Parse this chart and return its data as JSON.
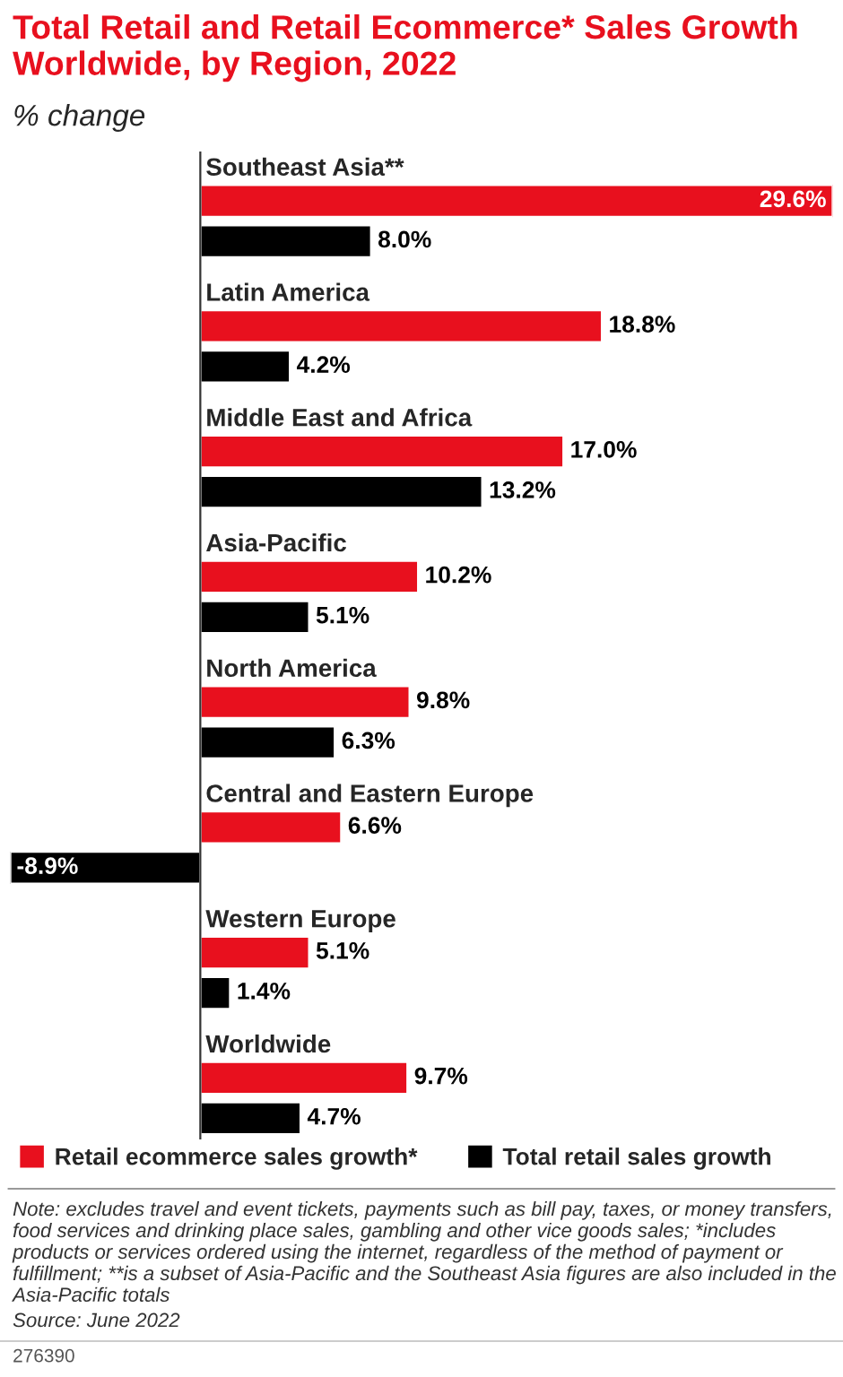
{
  "chart_data": {
    "type": "bar",
    "orientation": "horizontal",
    "title": "Total Retail and Retail Ecommerce* Sales Growth Worldwide, by Region, 2022",
    "subtitle": "% change",
    "categories": [
      "Southeast Asia**",
      "Latin America",
      "Middle East and Africa",
      "Asia-Pacific",
      "North America",
      "Central and Eastern Europe",
      "Western Europe",
      "Worldwide"
    ],
    "series": [
      {
        "name": "Retail ecommerce sales growth*",
        "color": "#e8101e",
        "values": [
          29.6,
          18.8,
          17.0,
          10.2,
          9.8,
          6.6,
          5.1,
          9.7
        ],
        "value_labels": [
          "29.6%",
          "18.8%",
          "17.0%",
          "10.2%",
          "9.8%",
          "6.6%",
          "5.1%",
          "9.7%"
        ]
      },
      {
        "name": "Total retail sales growth",
        "color": "#000000",
        "values": [
          8.0,
          4.2,
          13.2,
          5.1,
          6.3,
          -8.9,
          1.4,
          4.7
        ],
        "value_labels": [
          "8.0%",
          "4.2%",
          "13.2%",
          "5.1%",
          "6.3%",
          "-8.9%",
          "1.4%",
          "4.7%"
        ]
      }
    ],
    "legend": "bottom",
    "annotations": [
      "Note: excludes travel and event tickets, payments such as bill pay, taxes, or money transfers, food services and drinking place sales, gambling and other vice goods sales; *includes products or services ordered using the internet, regardless of the method of payment or fulfillment; **is a subset of Asia-Pacific and the Southeast Asia figures are also included in the Asia-Pacific totals",
      "Source: June 2022",
      "276390"
    ]
  }
}
